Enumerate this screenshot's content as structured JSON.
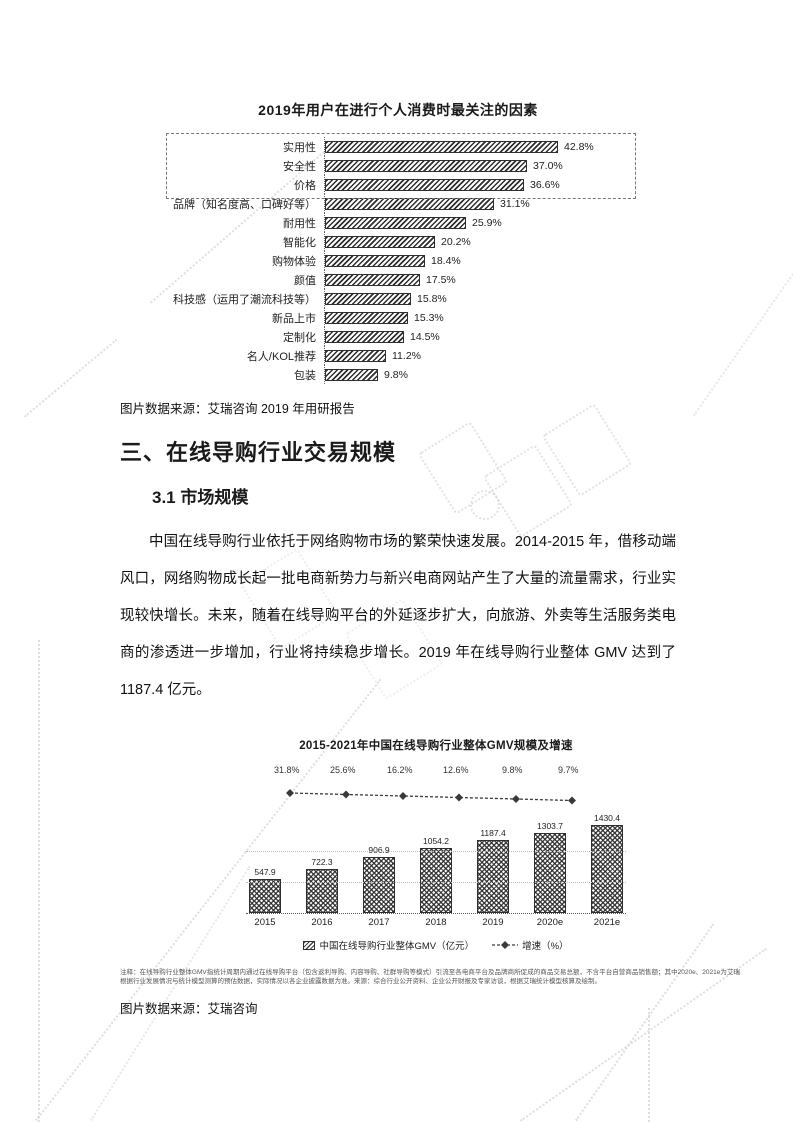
{
  "page": {
    "source1": "图片数据来源：艾瑞咨询 2019 年用研报告",
    "heading": "三、在线导购行业交易规模",
    "subheading": "3.1 市场规模",
    "paragraph": "中国在线导购行业依托于网络购物市场的繁荣快速发展。2014-2015 年，借移动端风口，网络购物成长起一批电商新势力与新兴电商网站产生了大量的流量需求，行业实现较快增长。未来，随着在线导购平台的外延逐步扩大，向旅游、外卖等生活服务类电商的渗透进一步增加，行业将持续稳步增长。2019 年在线导购行业整体 GMV 达到了 1187.4 亿元。",
    "source2": "图片数据来源：艾瑞咨询"
  },
  "chart_data": [
    {
      "type": "bar",
      "orientation": "horizontal",
      "title": "2019年用户在进行个人消费时最关注的因素",
      "categories": [
        "实用性",
        "安全性",
        "价格",
        "品牌（知名度高、口碑好等）",
        "耐用性",
        "智能化",
        "购物体验",
        "颜值",
        "科技感（运用了潮流科技等）",
        "新品上市",
        "定制化",
        "名人/KOL推荐",
        "包装"
      ],
      "values": [
        42.8,
        37.0,
        36.6,
        31.1,
        25.9,
        20.2,
        18.4,
        17.5,
        15.8,
        15.3,
        14.5,
        11.2,
        9.8
      ],
      "value_labels": [
        "42.8%",
        "37.0%",
        "36.6%",
        "31.1%",
        "25.9%",
        "20.2%",
        "18.4%",
        "17.5%",
        "15.8%",
        "15.3%",
        "14.5%",
        "11.2%",
        "9.8%"
      ],
      "xlim": [
        0,
        45
      ],
      "highlight_rows": [
        0,
        1,
        2
      ],
      "bar_style": "diagonal-hatch",
      "grid": false
    },
    {
      "type": "bar+line",
      "title": "2015-2021年中国在线导购行业整体GMV规模及增速",
      "categories": [
        "2015",
        "2016",
        "2017",
        "2018",
        "2019",
        "2020e",
        "2021e"
      ],
      "series": [
        {
          "name": "中国在线导购行业整体GMV（亿元）",
          "type": "bar",
          "values": [
            547.9,
            722.3,
            906.9,
            1054.2,
            1187.4,
            1303.7,
            1430.4
          ],
          "labels": [
            "547.9",
            "722.3",
            "906.9",
            "1054.2",
            "1187.4",
            "1303.7",
            "1430.4"
          ]
        },
        {
          "name": "增速（%）",
          "type": "line",
          "values": [
            31.8,
            25.6,
            16.2,
            12.6,
            9.8,
            9.7
          ],
          "labels": [
            "31.8%",
            "25.6%",
            "16.2%",
            "12.6%",
            "9.8%",
            "9.7%"
          ]
        }
      ],
      "ylim": [
        0,
        1500
      ],
      "legend_position": "bottom",
      "bar_style": "cross-hatch",
      "note": "注释：在线导购行业整体GMV指统计周期内通过在线导购平台（包含返利导购、内容导购、社群导购等模式）引流至各电商平台及品牌商所促成的商品交易总额，不含平台自营商品销售额；其中2020e、2021e为艾瑞根据行业发展情况与统计模型测算的预估数据，实际情况以各企业披露数据为准。来源：综合行业公开资料、企业公开财报及专家访谈，根据艾瑞统计模型核算及绘制。"
    }
  ]
}
